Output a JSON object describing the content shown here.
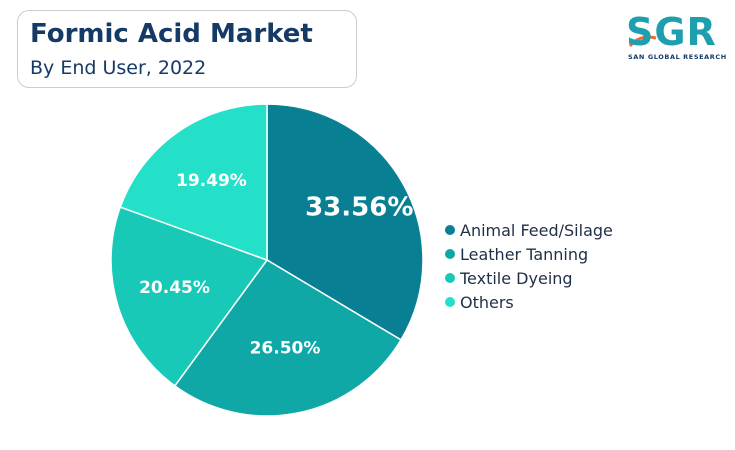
{
  "header": {
    "title": "Formic Acid Market",
    "subtitle": "By End User, 2022"
  },
  "logo": {
    "mark": "SGR",
    "subtext": "SAN GLOBAL RESEARCH",
    "icon": "sgr-logo-icon"
  },
  "colors": {
    "title": "#153a66",
    "slices": [
      "#097f93",
      "#0fa8a6",
      "#18c9b8",
      "#24e0c8"
    ]
  },
  "chart_data": {
    "type": "pie",
    "title": "Formic Acid Market",
    "subtitle": "By End User, 2022",
    "categories": [
      "Animal Feed/Silage",
      "Leather Tanning",
      "Textile Dyeing",
      "Others"
    ],
    "values": [
      33.56,
      26.5,
      20.45,
      19.49
    ],
    "labels": [
      "33.56%",
      "26.50%",
      "20.45%",
      "19.49%"
    ],
    "legend_position": "right",
    "start_angle": "top, clockwise"
  }
}
